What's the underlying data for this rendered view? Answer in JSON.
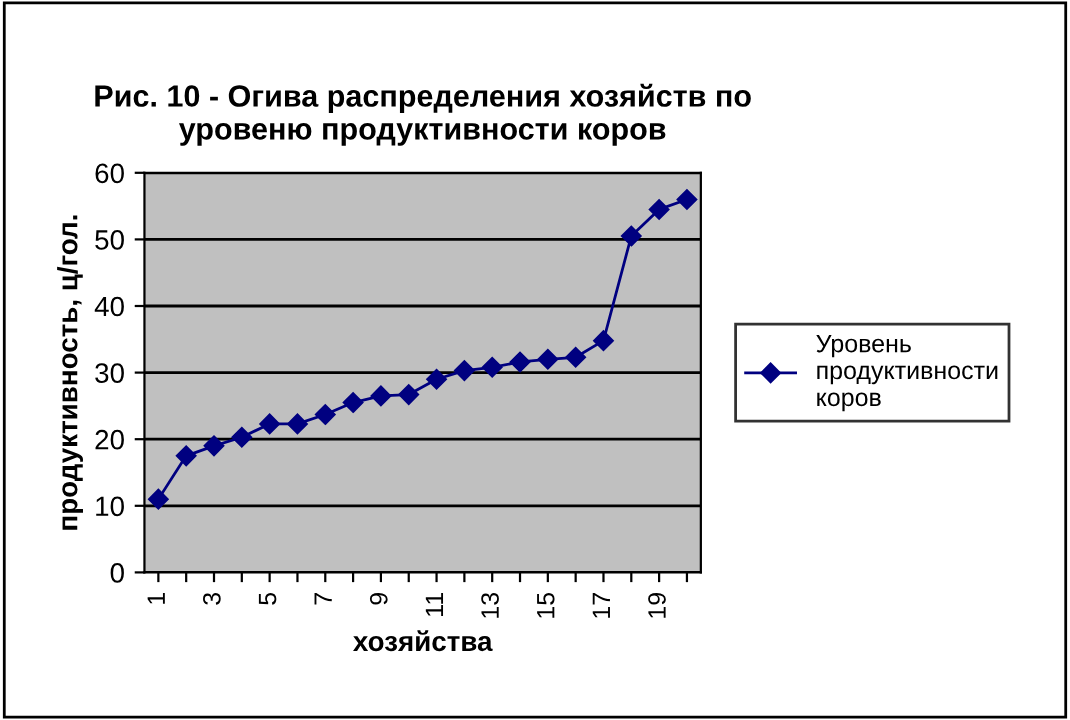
{
  "chart_data": {
    "type": "line",
    "title": "Рис. 10 - Огива распределения хозяйств по\nуровеню продуктивности коров",
    "xlabel": "хозяйства",
    "ylabel": "продуктивность, ц/гол.",
    "categories": [
      "1",
      null,
      "3",
      null,
      "5",
      null,
      "7",
      null,
      "9",
      null,
      "11",
      null,
      "13",
      null,
      "15",
      null,
      "17",
      null,
      "19",
      null
    ],
    "series": [
      {
        "name": "Уровень\nпродуктивности\nкоров",
        "color": "#000080",
        "values": [
          11,
          17.5,
          19,
          20.3,
          22.3,
          22.3,
          23.7,
          25.5,
          26.5,
          26.7,
          29,
          30.3,
          30.8,
          31.6,
          32,
          32.3,
          34.8,
          50.5,
          54.5,
          56
        ]
      }
    ],
    "ylim": [
      0,
      60
    ],
    "yticks": [
      0,
      10,
      20,
      30,
      40,
      50,
      60
    ],
    "grid": "y",
    "legend": "right",
    "marker": "diamond",
    "line_style": "solid"
  }
}
